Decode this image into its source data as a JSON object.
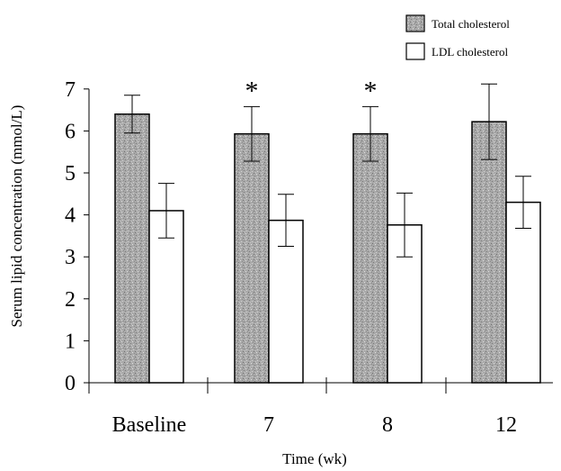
{
  "chart_data": {
    "type": "bar",
    "title": "",
    "xlabel": "Time (wk)",
    "ylabel": "Serum lipid concentration (mmol/L)",
    "ylim": [
      0,
      7
    ],
    "yticks": [
      0,
      1,
      2,
      3,
      4,
      5,
      6,
      7
    ],
    "categories": [
      "Baseline",
      "7",
      "8",
      "12"
    ],
    "series": [
      {
        "name": "Total cholesterol",
        "color": "#a8a8a8",
        "pattern": "stippled-gray",
        "values": [
          6.4,
          5.93,
          5.93,
          6.22
        ],
        "error": [
          0.45,
          0.65,
          0.65,
          0.9
        ]
      },
      {
        "name": "LDL cholesterol",
        "color": "#ffffff",
        "pattern": "none",
        "values": [
          4.1,
          3.87,
          3.76,
          4.3
        ],
        "error": [
          0.65,
          0.62,
          0.76,
          0.62
        ]
      }
    ],
    "annotations": [
      {
        "text": "*",
        "category": "7",
        "series": "Total cholesterol"
      },
      {
        "text": "*",
        "category": "8",
        "series": "Total cholesterol"
      }
    ],
    "legend": {
      "position": "top-right"
    },
    "grid": false
  }
}
